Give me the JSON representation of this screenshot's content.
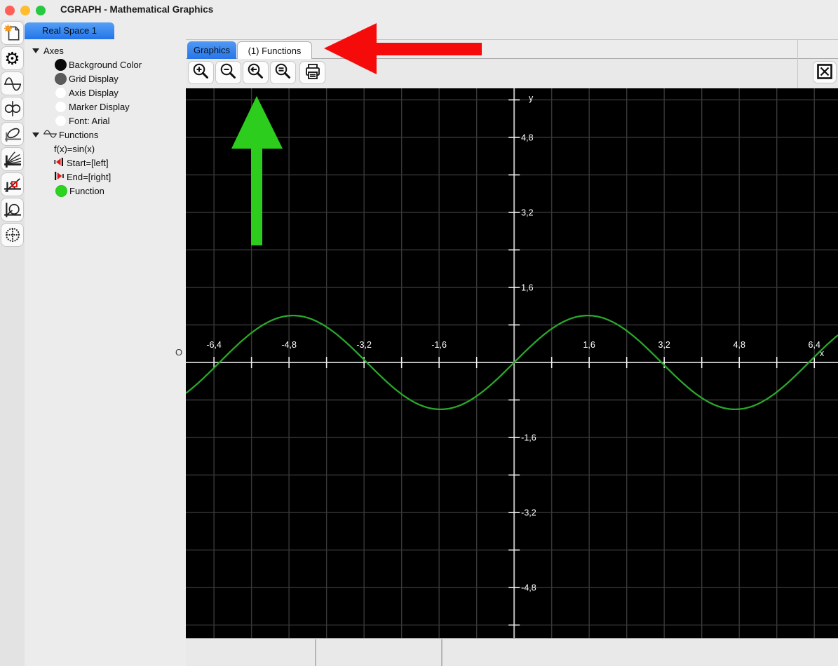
{
  "window": {
    "title": "CGRAPH - Mathematical Graphics"
  },
  "doc_tabs": {
    "real_space": "Real Space 1"
  },
  "sidebar": {
    "tools": [
      {
        "name": "new-document-icon"
      },
      {
        "name": "settings-gear-icon",
        "glyph": "⚙"
      },
      {
        "name": "sine-plot-icon"
      },
      {
        "name": "lemniscate-plot-icon"
      },
      {
        "name": "ellipse-plot-icon"
      },
      {
        "name": "curve-family-icon"
      },
      {
        "name": "tangent-plot-icon"
      },
      {
        "name": "circle-plot-icon"
      },
      {
        "name": "point-circle-plot-icon"
      }
    ]
  },
  "tree": {
    "axes": {
      "label": "Axes",
      "children": [
        {
          "label": "Background Color",
          "swatch": "#0a0a0a"
        },
        {
          "label": "Grid Display",
          "swatch": "#5a5a5a"
        },
        {
          "label": "Axis Display",
          "swatch": "#ffffff"
        },
        {
          "label": "Marker Display",
          "swatch": "#ffffff"
        },
        {
          "label": "Font: Arial",
          "swatch": "#ffffff"
        }
      ]
    },
    "functions": {
      "label": "Functions",
      "children": [
        {
          "label": "f(x)=sin(x)"
        },
        {
          "label": "Start=[left]"
        },
        {
          "label": "End=[right]"
        },
        {
          "label": "Function",
          "swatch": "#2bd41f"
        }
      ]
    }
  },
  "pane": {
    "tabs": [
      {
        "label": "Graphics",
        "active": true
      },
      {
        "label": "(1) Functions",
        "active": false
      }
    ],
    "toolbar": [
      "zoom-in",
      "zoom-out",
      "zoom-previous",
      "zoom-fit",
      "print"
    ],
    "close": "close-view"
  },
  "chart_data": {
    "type": "line",
    "title": "",
    "series": [
      {
        "name": "f(x)=sin(x)",
        "function_key": "sin",
        "color": "#2aa72a"
      }
    ],
    "x_axis_label": "x",
    "y_axis_label": "y",
    "origin_label": "O",
    "x_range": [
      -7.0,
      6.905
    ],
    "y_range": [
      -5.875,
      5.845
    ],
    "grid_step": 0.8,
    "x_ticks": [
      {
        "v": -6.4,
        "label": "-6,4"
      },
      {
        "v": -4.8,
        "label": "-4,8"
      },
      {
        "v": -3.2,
        "label": "-3,2"
      },
      {
        "v": -1.6,
        "label": "-1,6"
      },
      {
        "v": 1.6,
        "label": "1,6"
      },
      {
        "v": 3.2,
        "label": "3,2"
      },
      {
        "v": 4.8,
        "label": "4,8"
      },
      {
        "v": 6.4,
        "label": "6,4"
      }
    ],
    "y_ticks": [
      {
        "v": 4.8,
        "label": "4,8"
      },
      {
        "v": 3.2,
        "label": "3,2"
      },
      {
        "v": 1.6,
        "label": "1,6"
      },
      {
        "v": -1.6,
        "label": "-1,6"
      },
      {
        "v": -3.2,
        "label": "-3,2"
      },
      {
        "v": -4.8,
        "label": "-4,8"
      }
    ],
    "grid": true,
    "background": "#000000",
    "grid_color": "#383838",
    "axis_color": "#bbbbbb",
    "tick_color": "#efefef",
    "label_color": "#ffffff"
  },
  "annotations": {
    "red_arrow": {
      "shape": "arrow-left",
      "color": "#f60b0b"
    },
    "green_arrow": {
      "shape": "arrow-up",
      "color": "#2ccd1c"
    }
  }
}
